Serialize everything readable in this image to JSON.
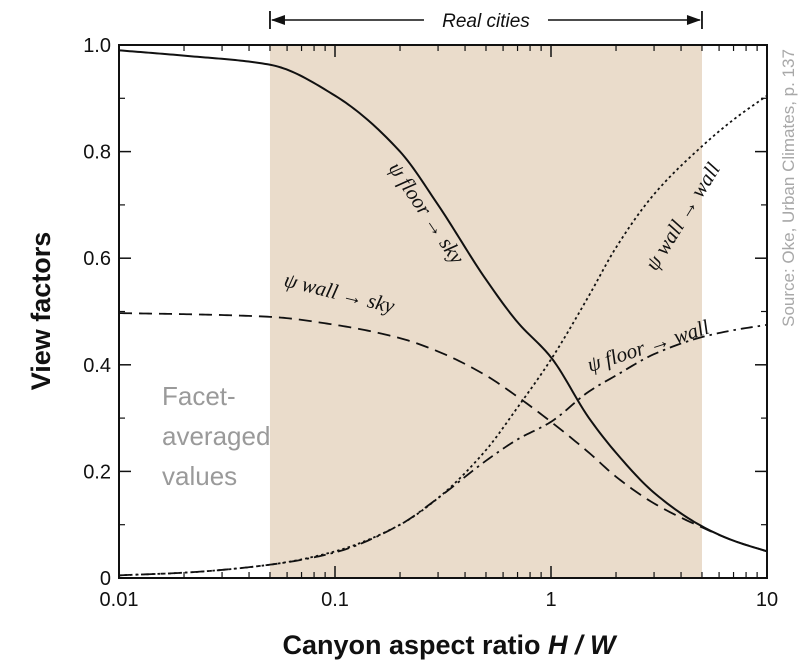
{
  "chart_data": {
    "type": "line",
    "x_scale": "log",
    "xlabel_text": "Canyon aspect ratio ",
    "xlabel_var": "H / W",
    "ylabel": "View factors",
    "xlim": [
      0.01,
      10
    ],
    "ylim": [
      0,
      1.0
    ],
    "xticks": [
      {
        "value": 0.01,
        "label": "0.01"
      },
      {
        "value": 0.1,
        "label": "0.1"
      },
      {
        "value": 1,
        "label": "1"
      },
      {
        "value": 10,
        "label": "10"
      }
    ],
    "yticks": [
      {
        "value": 0,
        "label": "0"
      },
      {
        "value": 0.2,
        "label": "0.2"
      },
      {
        "value": 0.4,
        "label": "0.4"
      },
      {
        "value": 0.6,
        "label": "0.6"
      },
      {
        "value": 0.8,
        "label": "0.8"
      },
      {
        "value": 1.0,
        "label": "1.0"
      }
    ],
    "shaded_range": {
      "from": 0.05,
      "to": 5,
      "label": "Real cities",
      "color": "#eadccb"
    },
    "series": [
      {
        "name": "ψ floor → sky",
        "style": "solid",
        "x": [
          0.01,
          0.02,
          0.05,
          0.1,
          0.2,
          0.3,
          0.5,
          0.7,
          1,
          1.5,
          2,
          3,
          5,
          7,
          10
        ],
        "y": [
          0.99,
          0.98,
          0.963,
          0.905,
          0.8,
          0.7,
          0.56,
          0.48,
          0.414,
          0.3,
          0.235,
          0.16,
          0.097,
          0.07,
          0.05
        ]
      },
      {
        "name": "ψ wall → wall",
        "style": "dotted",
        "x": [
          0.01,
          0.02,
          0.05,
          0.1,
          0.2,
          0.3,
          0.5,
          0.7,
          1,
          1.5,
          2,
          3,
          5,
          7,
          10
        ],
        "y": [
          0.005,
          0.01,
          0.025,
          0.05,
          0.1,
          0.15,
          0.24,
          0.32,
          0.41,
          0.53,
          0.62,
          0.72,
          0.81,
          0.86,
          0.905
        ]
      },
      {
        "name": "ψ wall → sky",
        "style": "dashed",
        "x": [
          0.01,
          0.02,
          0.05,
          0.1,
          0.2,
          0.3,
          0.5,
          0.7,
          1,
          1.5,
          2,
          3,
          5,
          7,
          10
        ],
        "y": [
          0.497,
          0.495,
          0.49,
          0.475,
          0.45,
          0.425,
          0.38,
          0.34,
          0.293,
          0.235,
          0.19,
          0.14,
          0.095,
          0.07,
          0.05
        ]
      },
      {
        "name": "ψ floor → wall",
        "style": "dashdot",
        "x": [
          0.01,
          0.02,
          0.05,
          0.1,
          0.2,
          0.3,
          0.5,
          0.7,
          1,
          1.5,
          2,
          3,
          5,
          7,
          10
        ],
        "y": [
          0.005,
          0.01,
          0.025,
          0.048,
          0.1,
          0.15,
          0.22,
          0.26,
          0.293,
          0.35,
          0.38,
          0.42,
          0.452,
          0.465,
          0.475
        ]
      }
    ],
    "curve_labels": [
      {
        "series": 0,
        "text_prefix": "ψ ",
        "text": "floor → sky"
      },
      {
        "series": 1,
        "text_prefix": "ψ ",
        "text": "wall → wall"
      },
      {
        "series": 2,
        "text_prefix": "ψ ",
        "text": "wall → sky"
      },
      {
        "series": 3,
        "text_prefix": "ψ ",
        "text": "floor → wall"
      }
    ],
    "annotation_lines": [
      "Facet-",
      "averaged",
      "values"
    ],
    "source_text": "Source: Oke, Urban Climates, p. 137",
    "grid": false
  }
}
